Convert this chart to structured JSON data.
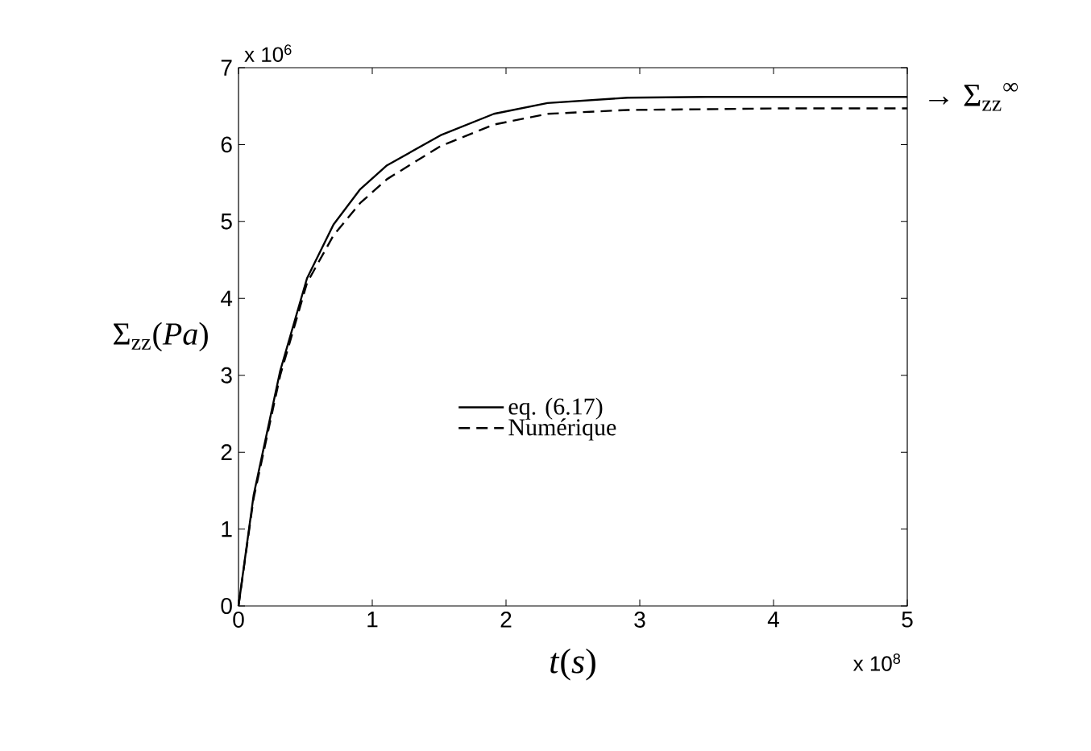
{
  "chart_data": {
    "type": "line",
    "xlabel": "*t*(*s*)",
    "ylabel": "Σ$_{zz}$(*Pa*)",
    "x": [
      0,
      0.113,
      0.312,
      0.512,
      0.71,
      0.91,
      1.11,
      1.51,
      1.91,
      2.31,
      2.91,
      3.5,
      4.0,
      5.0
    ],
    "series": [
      {
        "name": "eq. (6.17)",
        "color": "#000000",
        "line_style": "solid",
        "values": [
          0,
          1.44,
          3.06,
          4.26,
          4.96,
          5.42,
          5.73,
          6.12,
          6.4,
          6.54,
          6.61,
          6.62,
          6.62,
          6.62
        ]
      },
      {
        "name": "Numérique",
        "color": "#000000",
        "line_style": "dashed",
        "values": [
          0,
          1.4,
          3.0,
          4.2,
          4.82,
          5.24,
          5.55,
          5.98,
          6.26,
          6.4,
          6.45,
          6.46,
          6.47,
          6.47
        ]
      }
    ],
    "xlim": [
      0,
      5
    ],
    "ylim": [
      0,
      7
    ],
    "xticks": [
      0,
      1,
      2,
      3,
      4,
      5
    ],
    "yticks": [
      0,
      1,
      2,
      3,
      4,
      5,
      6,
      7
    ],
    "legend": "center",
    "grid": false,
    "annotations": [
      "x 10$^{6}$",
      "x 10$^{8}$",
      {
        "text": "→ Σ$_{zz}$$^{∞}$",
        "x": 5,
        "y": 6.62
      }
    ]
  }
}
